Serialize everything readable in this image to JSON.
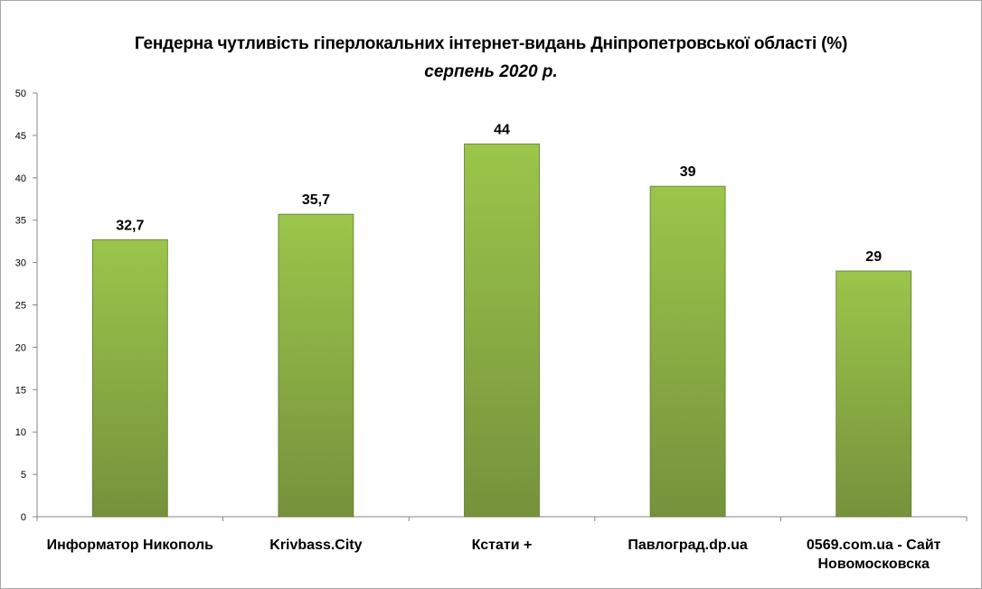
{
  "chart_data": {
    "type": "bar",
    "title": "Гендерна чутливість гіперлокальних інтернет-видань Дніпропетровської області (%)",
    "subtitle": "серпень 2020 р.",
    "xlabel": "",
    "ylabel": "",
    "categories": [
      "Информатор Никополь",
      "Krivbass.City",
      "Кстати +",
      "Павлоград.dp.ua",
      "0569.com.ua - Сайт Новомосковска"
    ],
    "category_lines": [
      [
        "Информатор Никополь"
      ],
      [
        "Krivbass.City"
      ],
      [
        "Кстати +"
      ],
      [
        "Павлоград.dp.ua"
      ],
      [
        "0569.com.ua - Сайт",
        "Новомосковска"
      ]
    ],
    "values": [
      32.7,
      35.7,
      44,
      39,
      29
    ],
    "data_labels": [
      "32,7",
      "35,7",
      "44",
      "39",
      "29"
    ],
    "ylim": [
      0,
      50
    ],
    "yticks": [
      0,
      5,
      10,
      15,
      20,
      25,
      30,
      35,
      40,
      45,
      50
    ],
    "grid": false,
    "legend": "none",
    "colors": {
      "bar_top": "#9bc54a",
      "bar_bottom": "#76923c",
      "bar_edge": "#5f7a2e",
      "axis": "#868686"
    }
  }
}
